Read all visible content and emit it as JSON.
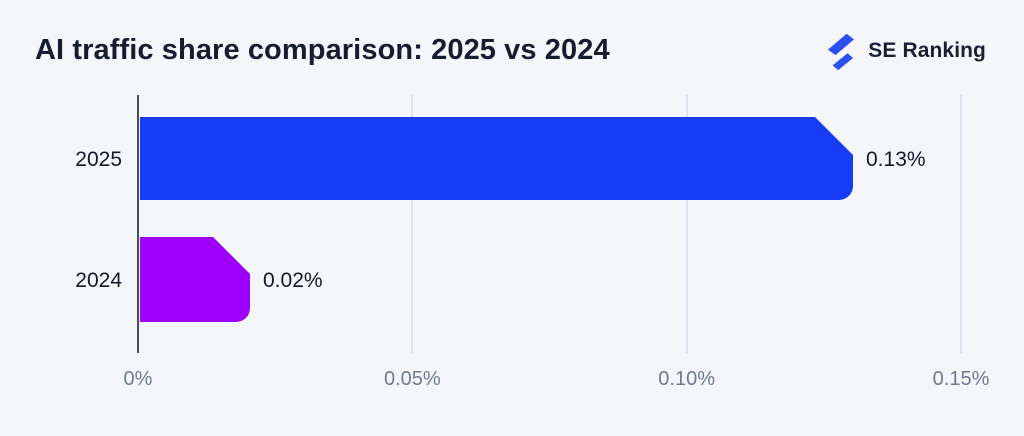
{
  "header": {
    "title": "AI traffic share comparison: 2025 vs 2024"
  },
  "logo": {
    "brand": "SE Ranking",
    "icon": "flash-icon",
    "icon_color": "#2b50f2"
  },
  "chart_data": {
    "type": "bar",
    "orientation": "horizontal",
    "title": "AI traffic share comparison: 2025 vs 2024",
    "categories": [
      "2025",
      "2024"
    ],
    "values": [
      0.13,
      0.02
    ],
    "value_labels": [
      "0.13%",
      "0.02%"
    ],
    "bar_colors": [
      "#163cf5",
      "#9d00fa"
    ],
    "xlabel": "",
    "ylabel": "",
    "xlim": [
      0,
      0.15
    ],
    "x_ticks": [
      0,
      0.05,
      0.1,
      0.15
    ],
    "x_tick_labels": [
      "0%",
      "0.05%",
      "0.10%",
      "0.15%"
    ],
    "grid": "vertical gridlines at each x tick",
    "legend": "none"
  },
  "colors": {
    "background": "#f5f6fa",
    "title_text": "#171c30",
    "axis_line": "#454d60",
    "gridline": "#dfe3f0",
    "tick_text": "#6e7a94",
    "label_text": "#12172b"
  }
}
